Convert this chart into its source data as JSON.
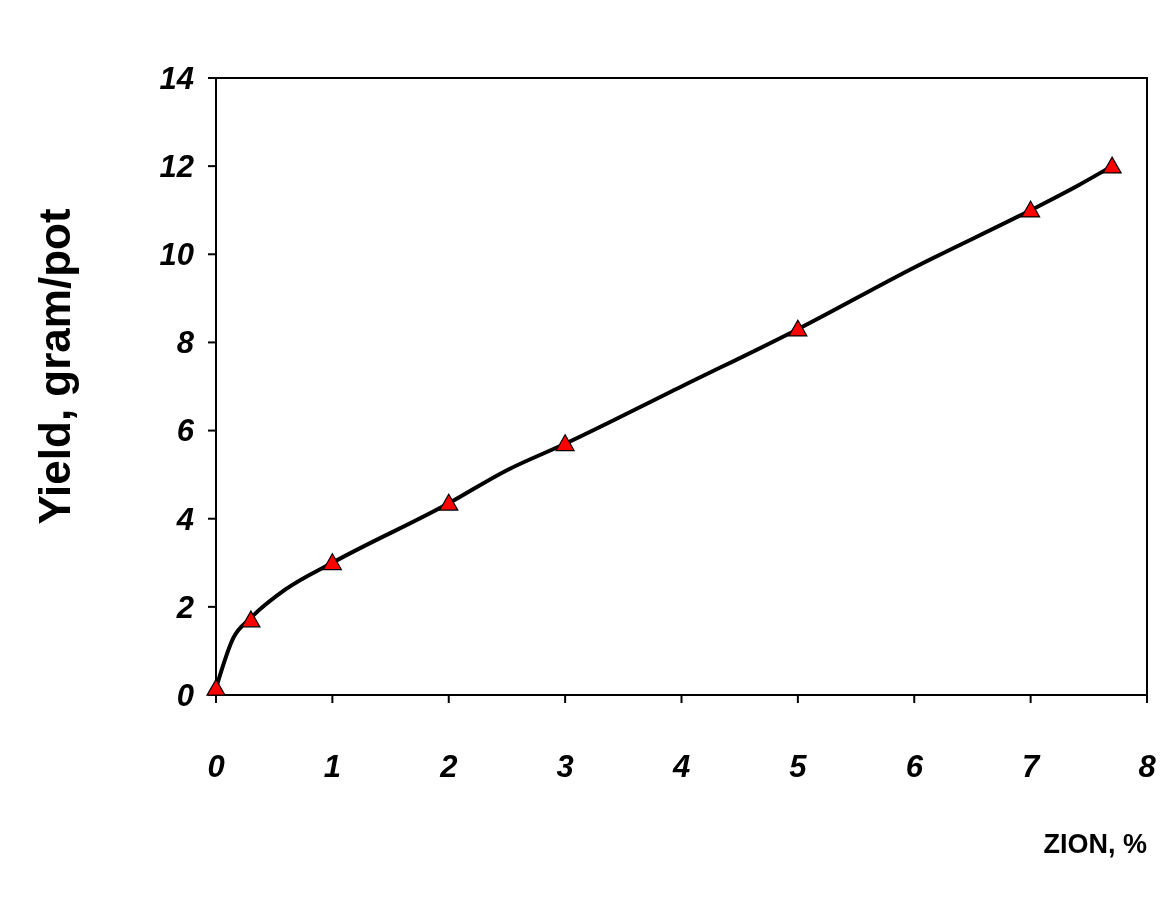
{
  "chart_data": {
    "type": "scatter",
    "xlabel": "ZION, %",
    "ylabel": "Yield, gram/pot",
    "xlim": [
      0,
      8
    ],
    "xticks": [
      0,
      1,
      2,
      3,
      4,
      5,
      6,
      7,
      8
    ],
    "ylim": [
      0,
      14
    ],
    "yticks": [
      0,
      2,
      4,
      6,
      8,
      10,
      12,
      14
    ],
    "grid": false,
    "series": [
      {
        "type": "line",
        "color": "#000000",
        "marker": "none",
        "line_style": "solid",
        "x": [
          0,
          0.15,
          0.3,
          0.6,
          1,
          2,
          2.5,
          3,
          4,
          5,
          6,
          7,
          7.4,
          7.7
        ],
        "values": [
          0.15,
          1.3,
          1.75,
          2.4,
          3.0,
          4.35,
          5.1,
          5.7,
          7.0,
          8.3,
          9.7,
          11.0,
          11.55,
          12.0
        ]
      },
      {
        "color": "#ff0000",
        "marker": "triangle",
        "x": [
          0,
          0.3,
          1,
          2,
          3,
          5,
          7,
          7.7
        ],
        "values": [
          0.15,
          1.7,
          3.0,
          4.35,
          5.7,
          8.3,
          11.0,
          12.0
        ]
      }
    ]
  }
}
